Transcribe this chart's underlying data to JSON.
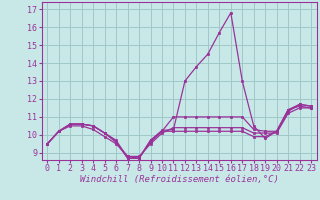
{
  "xlabel": "Windchill (Refroidissement éolien,°C)",
  "background_color": "#c8e8e8",
  "grid_color": "#a0c8c8",
  "line_color": "#993399",
  "x_ticks": [
    0,
    1,
    2,
    3,
    4,
    5,
    6,
    7,
    8,
    9,
    10,
    11,
    12,
    13,
    14,
    15,
    16,
    17,
    18,
    19,
    20,
    21,
    22,
    23
  ],
  "y_ticks": [
    9,
    10,
    11,
    12,
    13,
    14,
    15,
    16,
    17
  ],
  "ylim": [
    8.6,
    17.4
  ],
  "xlim": [
    -0.5,
    23.5
  ],
  "series": [
    [
      9.5,
      10.2,
      10.6,
      10.6,
      10.5,
      10.1,
      9.6,
      8.7,
      8.7,
      9.7,
      10.25,
      10.3,
      13.0,
      13.8,
      14.5,
      15.7,
      16.8,
      13.0,
      10.5,
      9.8,
      10.2,
      11.3,
      11.7,
      11.6
    ],
    [
      9.5,
      10.2,
      10.6,
      10.6,
      10.5,
      10.1,
      9.6,
      8.8,
      8.7,
      9.6,
      10.2,
      11.0,
      11.0,
      11.0,
      11.0,
      11.0,
      11.0,
      11.0,
      10.3,
      10.2,
      10.2,
      11.4,
      11.7,
      11.6
    ],
    [
      9.5,
      10.2,
      10.5,
      10.5,
      10.3,
      9.9,
      9.5,
      8.8,
      8.8,
      9.5,
      10.1,
      10.4,
      10.4,
      10.4,
      10.4,
      10.4,
      10.4,
      10.4,
      10.1,
      10.1,
      10.1,
      11.2,
      11.5,
      11.5
    ],
    [
      9.5,
      10.2,
      10.6,
      10.6,
      10.5,
      10.1,
      9.7,
      8.7,
      8.7,
      9.7,
      10.2,
      10.2,
      10.2,
      10.2,
      10.2,
      10.2,
      10.2,
      10.2,
      9.9,
      9.9,
      10.2,
      11.4,
      11.6,
      11.5
    ]
  ],
  "tick_fontsize": 6,
  "xlabel_fontsize": 6.5
}
